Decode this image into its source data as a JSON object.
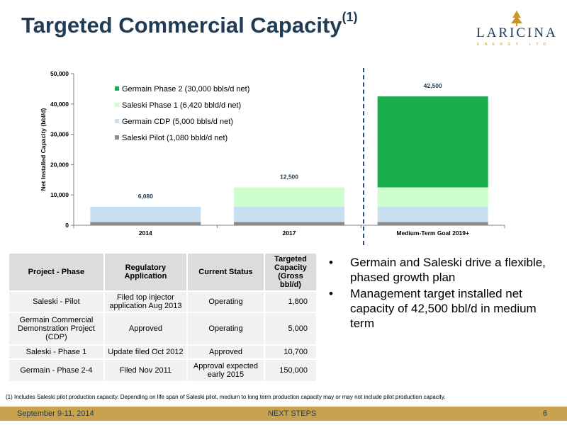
{
  "header": {
    "title": "Targeted Commercial Capacity",
    "title_sup": "(1)"
  },
  "logo": {
    "name": "LARICINA",
    "sub": "ENERGY LTD."
  },
  "chart_data": {
    "type": "bar",
    "stacked": true,
    "categories": [
      "2014",
      "2017",
      "Medium-Term Goal 2019+"
    ],
    "series": [
      {
        "name": "Saleski Pilot (1,080 bbld/d net)",
        "color": "#8c8c8c",
        "values": [
          1080,
          1080,
          1080
        ]
      },
      {
        "name": "Germain CDP (5,000 bbls/d net)",
        "color": "#c8dff2",
        "values": [
          5000,
          5000,
          5000
        ]
      },
      {
        "name": "Saleski Phase 1 (6,420 bbld/d net)",
        "color": "#ccffcc",
        "values": [
          0,
          6420,
          6420
        ]
      },
      {
        "name": "Germain Phase 2 (30,000 bbls/d net)",
        "color": "#1aae4c",
        "values": [
          0,
          0,
          30000
        ]
      }
    ],
    "totals": [
      "6,080",
      "12,500",
      "42,500"
    ],
    "ylabel": "Net Installed Capacity (bbl/d)",
    "ylim": [
      0,
      50000
    ],
    "yticks": [
      "0",
      "10,000",
      "20,000",
      "30,000",
      "40,000",
      "50,000"
    ],
    "legend_position": "top-left",
    "grid": false
  },
  "table": {
    "headers": [
      "Project - Phase",
      "Regulatory Application",
      "Current Status",
      "Targeted Capacity (Gross bbl/d)"
    ],
    "rows": [
      [
        "Saleski - Pilot",
        "Filed top injector application Aug 2013",
        "Operating",
        "1,800"
      ],
      [
        "Germain Commercial Demonstration Project (CDP)",
        "Approved",
        "Operating",
        "5,000"
      ],
      [
        "Saleski - Phase 1",
        "Update filed Oct 2012",
        "Approved",
        "10,700"
      ],
      [
        "Germain - Phase 2-4",
        "Filed Nov 2011",
        "Approval expected early 2015",
        "150,000"
      ]
    ]
  },
  "bullets": [
    "Germain and Saleski drive a flexible, phased growth plan",
    "Management target installed net capacity of 42,500 bbl/d in medium term"
  ],
  "bullet_glyph": "•",
  "footnote": "(1) Includes Saleski pilot production capacity. Depending on life span of Saleski pilot, medium to long term production capacity may or may not include pilot production capacity.",
  "footer": {
    "date": "September 9-11, 2014",
    "section": "NEXT STEPS",
    "page": "6"
  }
}
